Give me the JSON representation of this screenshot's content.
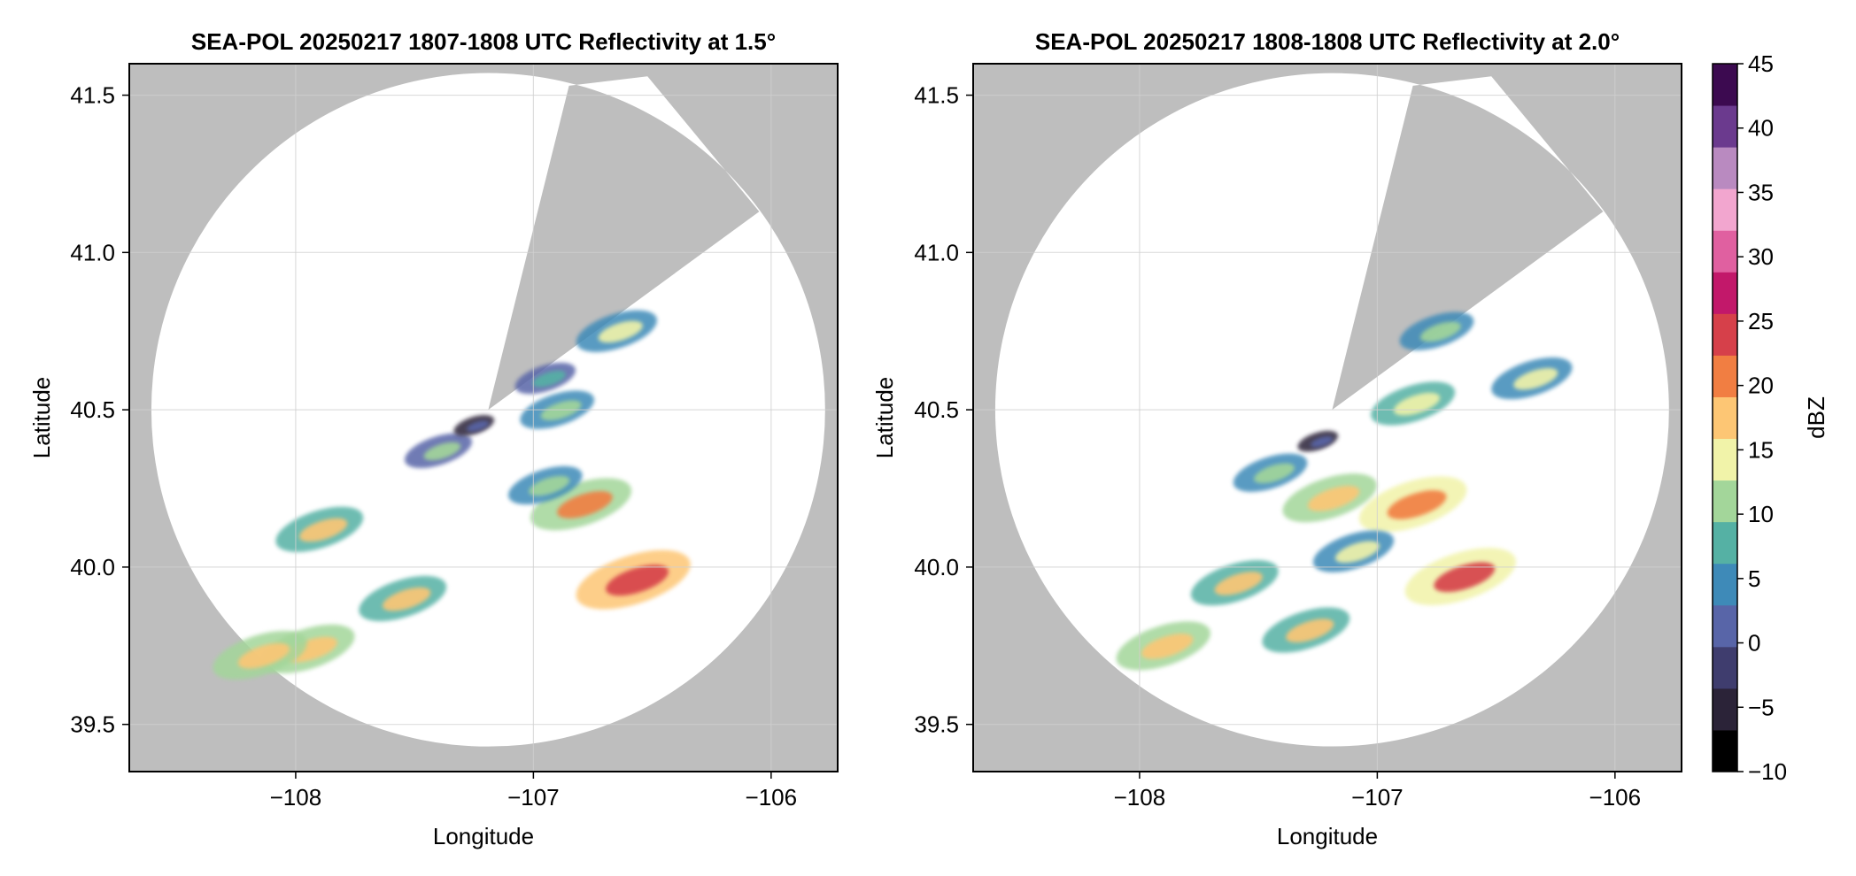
{
  "chart_data": [
    {
      "type": "heatmap",
      "title": "SEA-POL 20250217 1807-1808 UTC Reflectivity at 1.5°",
      "xlabel": "Longitude",
      "ylabel": "Latitude",
      "xlim": [
        -108.7,
        -105.72
      ],
      "ylim": [
        39.35,
        41.6
      ],
      "x_ticks": [
        -108,
        -107,
        -106
      ],
      "x_tick_labels": [
        "−108",
        "−107",
        "−106"
      ],
      "y_ticks": [
        39.5,
        40.0,
        40.5,
        41.0,
        41.5
      ],
      "y_tick_labels": [
        "39.5",
        "40.0",
        "40.5",
        "41.0",
        "41.5"
      ],
      "grid": true,
      "radar_center": [
        -107.19,
        40.5
      ],
      "coverage_radius_deg": 1.07,
      "blocked_sector_vertices": [
        [
          -107.19,
          40.5
        ],
        [
          -106.85,
          41.53
        ],
        [
          -106.52,
          41.56
        ],
        [
          -106.05,
          41.13
        ]
      ],
      "echo_cells": [
        {
          "lon": -106.58,
          "lat": 39.96,
          "dbz": 24
        },
        {
          "lon": -106.8,
          "lat": 40.2,
          "dbz": 20
        },
        {
          "lon": -106.95,
          "lat": 40.26,
          "dbz": 12
        },
        {
          "lon": -107.4,
          "lat": 40.37,
          "dbz": 10
        },
        {
          "lon": -106.9,
          "lat": 40.5,
          "dbz": 12
        },
        {
          "lon": -106.95,
          "lat": 40.6,
          "dbz": 8
        },
        {
          "lon": -106.65,
          "lat": 40.75,
          "dbz": 14
        },
        {
          "lon": -107.25,
          "lat": 40.45,
          "dbz": 2
        },
        {
          "lon": -107.55,
          "lat": 39.9,
          "dbz": 16
        },
        {
          "lon": -107.9,
          "lat": 40.12,
          "dbz": 16
        },
        {
          "lon": -107.95,
          "lat": 39.74,
          "dbz": 18
        },
        {
          "lon": -108.15,
          "lat": 39.72,
          "dbz": 18
        }
      ]
    },
    {
      "type": "heatmap",
      "title": "SEA-POL 20250217 1808-1808 UTC Reflectivity at 2.0°",
      "xlabel": "Longitude",
      "ylabel": "Latitude",
      "xlim": [
        -108.7,
        -105.72
      ],
      "ylim": [
        39.35,
        41.6
      ],
      "x_ticks": [
        -108,
        -107,
        -106
      ],
      "x_tick_labels": [
        "−108",
        "−107",
        "−106"
      ],
      "y_ticks": [
        39.5,
        40.0,
        40.5,
        41.0,
        41.5
      ],
      "y_tick_labels": [
        "39.5",
        "40.0",
        "40.5",
        "41.0",
        "41.5"
      ],
      "grid": true,
      "radar_center": [
        -107.19,
        40.5
      ],
      "coverage_radius_deg": 1.07,
      "blocked_sector_vertices": [
        [
          -107.19,
          40.5
        ],
        [
          -106.85,
          41.53
        ],
        [
          -106.52,
          41.56
        ],
        [
          -106.05,
          41.13
        ]
      ],
      "echo_cells": [
        {
          "lon": -106.65,
          "lat": 39.97,
          "dbz": 23
        },
        {
          "lon": -106.85,
          "lat": 40.2,
          "dbz": 22
        },
        {
          "lon": -107.2,
          "lat": 40.22,
          "dbz": 18
        },
        {
          "lon": -107.45,
          "lat": 40.3,
          "dbz": 12
        },
        {
          "lon": -107.1,
          "lat": 40.05,
          "dbz": 14
        },
        {
          "lon": -106.85,
          "lat": 40.52,
          "dbz": 15
        },
        {
          "lon": -106.75,
          "lat": 40.75,
          "dbz": 12
        },
        {
          "lon": -107.25,
          "lat": 40.4,
          "dbz": 2
        },
        {
          "lon": -107.6,
          "lat": 39.95,
          "dbz": 16
        },
        {
          "lon": -107.3,
          "lat": 39.8,
          "dbz": 16
        },
        {
          "lon": -106.35,
          "lat": 40.6,
          "dbz": 14
        },
        {
          "lon": -107.9,
          "lat": 39.75,
          "dbz": 18
        }
      ]
    }
  ],
  "colorbar": {
    "label": "dBZ",
    "ticks": [
      -10,
      -5,
      0,
      5,
      10,
      15,
      20,
      25,
      30,
      35,
      40,
      45
    ],
    "tick_labels": [
      "−10",
      "−5",
      "0",
      "5",
      "10",
      "15",
      "20",
      "25",
      "30",
      "35",
      "40",
      "45"
    ],
    "range": [
      -10,
      45
    ]
  },
  "colors": {
    "blocked_gray": "#bebebe",
    "grid": "#d0d0d0",
    "colormap": [
      "#000000",
      "#2b2338",
      "#3f3d6e",
      "#5865a8",
      "#3e8ab8",
      "#55b1a4",
      "#a3d69a",
      "#f1f3a9",
      "#fdc674",
      "#f17e42",
      "#d6404a",
      "#c2186a",
      "#e060a0",
      "#f2a6cf",
      "#b98ac0",
      "#6b3a8e",
      "#3c0a50"
    ]
  }
}
